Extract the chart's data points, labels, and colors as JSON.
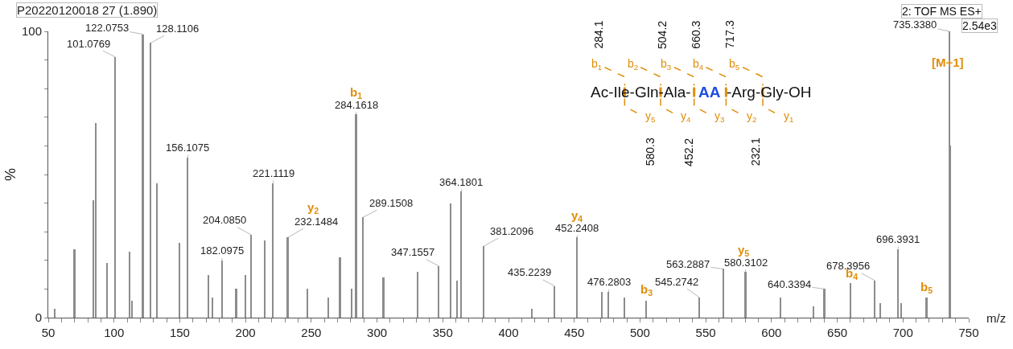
{
  "chart_data": {
    "type": "bar",
    "title": "P20220120018 27 (1.890)",
    "xlabel": "m/z",
    "ylabel": "%",
    "color": "#8c8c8c",
    "x": [
      55,
      70,
      84.5,
      86.4,
      95,
      101.0769,
      112,
      114,
      122.0753,
      128.1106,
      133,
      150,
      156.1075,
      172,
      175,
      182.0975,
      193,
      200,
      204.085,
      215,
      221.1119,
      232.1484,
      247,
      263,
      272,
      281,
      284.1618,
      289.1508,
      305,
      331,
      347.1557,
      356,
      361,
      364.1801,
      381.2096,
      418,
      435.2239,
      452.2408,
      471,
      476.2803,
      488,
      505,
      545.2742,
      563.2887,
      580.3102,
      607,
      632,
      640.3394,
      660,
      678.3956,
      683,
      696.3931,
      699,
      718,
      735.338,
      736.3
    ],
    "values": [
      3,
      24,
      41,
      68,
      19,
      91,
      23,
      6,
      99,
      96,
      47,
      26,
      56,
      15,
      7,
      20,
      10,
      15,
      29,
      27,
      47,
      28,
      10,
      7,
      21,
      10,
      71,
      35,
      14,
      16,
      18,
      40,
      13,
      44,
      25,
      3,
      11,
      28,
      9,
      9,
      7,
      6,
      7,
      17,
      16,
      7,
      4,
      10,
      12,
      13,
      5,
      24,
      5,
      7,
      100,
      60
    ],
    "xlim": [
      50,
      750
    ],
    "xticks": [
      50,
      {
        "value": 60,
        "label": null
      },
      {
        "value": 70,
        "label": null
      },
      {
        "value": 80,
        "label": null
      },
      {
        "value": 90,
        "label": null
      },
      100,
      {
        "value": 110,
        "label": null
      },
      {
        "value": 120,
        "label": null
      },
      {
        "value": 130,
        "label": null
      },
      {
        "value": 140,
        "label": null
      },
      150,
      {
        "value": 160,
        "label": null
      },
      {
        "value": 170,
        "label": null
      },
      {
        "value": 180,
        "label": null
      },
      {
        "value": 190,
        "label": null
      },
      200,
      {
        "value": 210,
        "label": null
      },
      {
        "value": 220,
        "label": null
      },
      {
        "value": 230,
        "label": null
      },
      {
        "value": 240,
        "label": null
      },
      250,
      {
        "value": 260,
        "label": null
      },
      {
        "value": 270,
        "label": null
      },
      {
        "value": 280,
        "label": null
      },
      {
        "value": 290,
        "label": null
      },
      300,
      {
        "value": 310,
        "label": null
      },
      {
        "value": 320,
        "label": null
      },
      {
        "value": 330,
        "label": null
      },
      {
        "value": 340,
        "label": null
      },
      350,
      {
        "value": 360,
        "label": null
      },
      {
        "value": 370,
        "label": null
      },
      {
        "value": 380,
        "label": null
      },
      {
        "value": 390,
        "label": null
      },
      400,
      {
        "value": 410,
        "label": null
      },
      {
        "value": 420,
        "label": null
      },
      {
        "value": 430,
        "label": null
      },
      {
        "value": 440,
        "label": null
      },
      450,
      {
        "value": 460,
        "label": null
      },
      {
        "value": 470,
        "label": null
      },
      {
        "value": 480,
        "label": null
      },
      {
        "value": 490,
        "label": null
      },
      500,
      {
        "value": 510,
        "label": null
      },
      {
        "value": 520,
        "label": null
      },
      {
        "value": 530,
        "label": null
      },
      {
        "value": 540,
        "label": null
      },
      550,
      {
        "value": 560,
        "label": null
      },
      {
        "value": 570,
        "label": null
      },
      {
        "value": 580,
        "label": null
      },
      {
        "value": 590,
        "label": null
      },
      600,
      {
        "value": 610,
        "label": null
      },
      {
        "value": 620,
        "label": null
      },
      {
        "value": 630,
        "label": null
      },
      {
        "value": 640,
        "label": null
      },
      650,
      {
        "value": 660,
        "label": null
      },
      {
        "value": 670,
        "label": null
      },
      {
        "value": 680,
        "label": null
      },
      {
        "value": 690,
        "label": null
      },
      700,
      {
        "value": 710,
        "label": null
      },
      {
        "value": 720,
        "label": null
      },
      {
        "value": 730,
        "label": null
      },
      {
        "value": 740,
        "label": null
      },
      750
    ],
    "ylim": [
      0,
      100
    ],
    "yticks": [
      0,
      {
        "value": 10,
        "label": null
      },
      {
        "value": 20,
        "label": null
      },
      {
        "value": 30,
        "label": null
      },
      {
        "value": 40,
        "label": null
      },
      {
        "value": 50,
        "label": null
      },
      {
        "value": 60,
        "label": null
      },
      {
        "value": 70,
        "label": null
      },
      {
        "value": 80,
        "label": null
      },
      {
        "value": 90,
        "label": null
      },
      100
    ],
    "annotations": [
      "2: TOF MS ES+",
      "2.54e3",
      "Ac-Ile-Gln-Ala-",
      "AA",
      "-Arg-Gly-OH",
      "b$_{1}$",
      "b$_{2}$",
      "b$_{3}$",
      "b$_{4}$",
      "b$_{5}$",
      "y$_{5}$",
      "y$_{4}$",
      "y$_{3}$",
      "y$_{2}$",
      "y$_{1}$",
      "284.1",
      "504.2",
      "660.3",
      "717.3",
      "580.3",
      "452.2",
      "232.1",
      {
        "text": "101.0769",
        "x": 101.0769,
        "y": 91
      },
      {
        "text": "122.0753",
        "x": 122.0753,
        "y": 99
      },
      {
        "text": "128.1106",
        "x": 128.1106,
        "y": 96
      },
      {
        "text": "156.1075",
        "x": 156.1075,
        "y": 56
      },
      {
        "text": "182.0975",
        "x": 182.0975,
        "y": 20
      },
      {
        "text": "204.0850",
        "x": 204.085,
        "y": 29
      },
      {
        "text": "221.1119",
        "x": 221.1119,
        "y": 47
      },
      {
        "text": "232.1484",
        "x": 232.1484,
        "y": 28
      },
      {
        "text": "284.1618",
        "x": 284.1618,
        "y": 71
      },
      {
        "text": "289.1508",
        "x": 289.1508,
        "y": 35
      },
      {
        "text": "347.1557",
        "x": 347.1557,
        "y": 18
      },
      {
        "text": "364.1801",
        "x": 364.1801,
        "y": 44
      },
      {
        "text": "381.2096",
        "x": 381.2096,
        "y": 25
      },
      {
        "text": "435.2239",
        "x": 435.2239,
        "y": 11
      },
      {
        "text": "452.2408",
        "x": 452.2408,
        "y": 28
      },
      {
        "text": "476.2803",
        "x": 476.2803,
        "y": 9
      },
      {
        "text": "545.2742",
        "x": 545.2742,
        "y": 7
      },
      {
        "text": "563.2887",
        "x": 563.2887,
        "y": 17
      },
      {
        "text": "580.3102",
        "x": 580.3102,
        "y": 16
      },
      {
        "text": "640.3394",
        "x": 640.3394,
        "y": 10
      },
      {
        "text": "678.3956",
        "x": 678.3956,
        "y": 13
      },
      {
        "text": "696.3931",
        "x": 696.3931,
        "y": 24
      },
      {
        "text": "735.3380",
        "x": 735.338,
        "y": 100
      },
      {
        "text": "b$_{1}$",
        "x": 284.1618,
        "y": 71
      },
      {
        "text": "y$_{2}$",
        "x": 232.1484,
        "y": 28
      },
      {
        "text": "y$_{4}$",
        "x": 452.2408,
        "y": 28
      },
      {
        "text": "b$_{3}$",
        "x": 505,
        "y": 6
      },
      {
        "text": "y$_{5}$",
        "x": 580.3102,
        "y": 16
      },
      {
        "text": "b$_{4}$",
        "x": 660,
        "y": 12
      },
      {
        "text": "b$_{5}$",
        "x": 718,
        "y": 7
      },
      {
        "text": "[M+1]",
        "x": 735.338,
        "y": 100
      }
    ]
  }
}
